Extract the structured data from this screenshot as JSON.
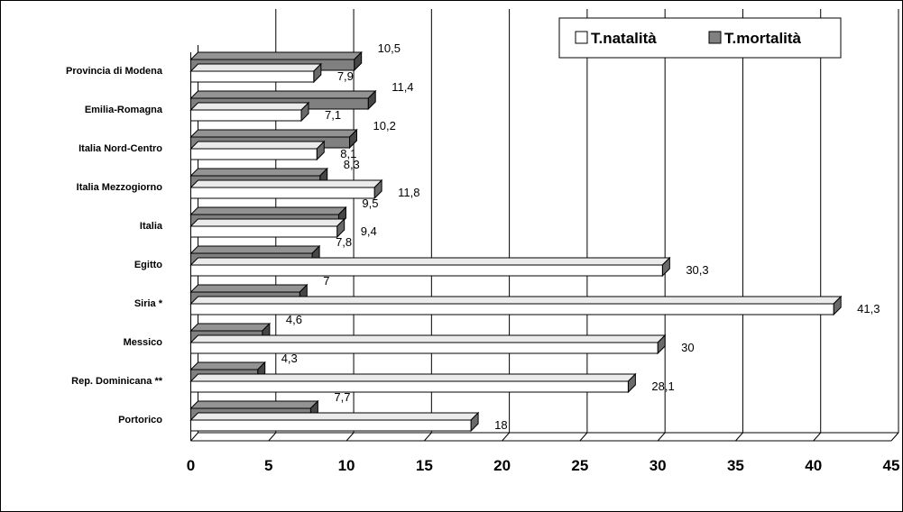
{
  "chart_data": {
    "type": "bar",
    "orientation": "horizontal",
    "three_d": true,
    "categories": [
      "Provincia di Modena",
      "Emilia-Romagna",
      "Italia Nord-Centro",
      "Italia Mezzogiorno",
      "Italia",
      "Egitto",
      "Siria *",
      "Messico",
      "Rep. Dominicana **",
      "Portorico"
    ],
    "series": [
      {
        "name": "T.natalità",
        "values": [
          7.9,
          7.1,
          8.1,
          11.8,
          9.4,
          30.3,
          41.3,
          30,
          28.1,
          18
        ],
        "labels": [
          "7,9",
          "7,1",
          "8,1",
          "11,8",
          "9,4",
          "30,3",
          "41,3",
          "30",
          "28,1",
          "18"
        ]
      },
      {
        "name": "T.mortalità",
        "values": [
          10.5,
          11.4,
          10.2,
          8.3,
          9.5,
          7.8,
          7,
          4.6,
          4.3,
          7.7
        ],
        "labels": [
          "10,5",
          "11,4",
          "10,2",
          "8,3",
          "9,5",
          "7,8",
          "7",
          "4,6",
          "4,3",
          "7,7"
        ]
      }
    ],
    "xlim": [
      0,
      45
    ],
    "x_ticks": [
      "0",
      "5",
      "10",
      "15",
      "20",
      "25",
      "30",
      "35",
      "40",
      "45"
    ],
    "grid": "vertical",
    "legend_position": "top-right",
    "colors": {
      "natalita_face": "#ffffff",
      "mortalita_face": "#808080",
      "grid": "#000000"
    }
  }
}
